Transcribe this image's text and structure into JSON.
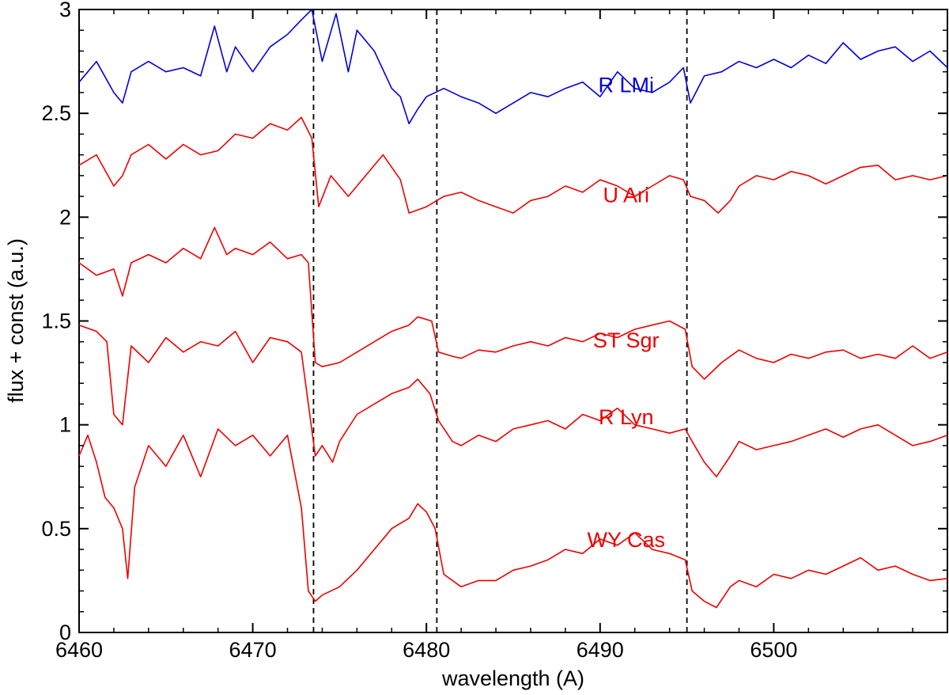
{
  "chart_data": {
    "type": "line",
    "title": "",
    "xlabel": "wavelength (A)",
    "ylabel": "flux + const (a.u.)",
    "xlim": [
      6460,
      6510
    ],
    "ylim": [
      0,
      3
    ],
    "xticks": [
      6460,
      6470,
      6480,
      6490,
      6500
    ],
    "xtick_labels": [
      "6460",
      "6470",
      "6480",
      "6490",
      "6500"
    ],
    "yticks": [
      0,
      0.5,
      1,
      1.5,
      2,
      2.5,
      3
    ],
    "ytick_labels": [
      "0",
      "0.5",
      "1",
      "1.5",
      "2",
      "2.5",
      "3"
    ],
    "reference_lines_x": [
      6473.5,
      6480.6,
      6495.0
    ],
    "series": [
      {
        "name": "R LMi",
        "color": "#0000dd",
        "x": [
          6460,
          6461,
          6462,
          6462.5,
          6463,
          6464,
          6465,
          6466,
          6467,
          6467.8,
          6468.5,
          6469,
          6470,
          6471,
          6472,
          6472.8,
          6473.4,
          6474,
          6474.8,
          6475.5,
          6476,
          6477,
          6478,
          6478.5,
          6479,
          6479.5,
          6480,
          6481,
          6482,
          6483,
          6484,
          6485,
          6486,
          6487,
          6488,
          6489,
          6490,
          6491,
          6492,
          6493,
          6494,
          6494.8,
          6495.2,
          6496,
          6497,
          6498,
          6499,
          6500,
          6501,
          6502,
          6503,
          6504,
          6505,
          6506,
          6507,
          6508,
          6509,
          6510
        ],
        "y": [
          2.65,
          2.75,
          2.6,
          2.55,
          2.7,
          2.75,
          2.7,
          2.72,
          2.68,
          2.92,
          2.7,
          2.82,
          2.7,
          2.82,
          2.88,
          2.95,
          3.0,
          2.75,
          2.98,
          2.7,
          2.9,
          2.8,
          2.62,
          2.58,
          2.45,
          2.52,
          2.58,
          2.62,
          2.58,
          2.55,
          2.5,
          2.55,
          2.6,
          2.58,
          2.62,
          2.65,
          2.58,
          2.7,
          2.62,
          2.6,
          2.65,
          2.72,
          2.55,
          2.68,
          2.7,
          2.75,
          2.72,
          2.76,
          2.72,
          2.78,
          2.74,
          2.84,
          2.76,
          2.8,
          2.82,
          2.75,
          2.8,
          2.72
        ]
      },
      {
        "name": "U Ari",
        "color": "#ee0000",
        "x": [
          6460,
          6461,
          6462,
          6462.5,
          6463,
          6464,
          6465,
          6466,
          6467,
          6468,
          6469,
          6470,
          6471,
          6472,
          6472.8,
          6473.4,
          6473.8,
          6474.5,
          6475.5,
          6476.5,
          6477.5,
          6478.5,
          6479,
          6480,
          6481,
          6482,
          6483,
          6484,
          6485,
          6486,
          6487,
          6488,
          6489,
          6490,
          6491,
          6492,
          6493,
          6494,
          6494.8,
          6495.2,
          6496,
          6496.8,
          6497.5,
          6498,
          6499,
          6500,
          6501,
          6502,
          6503,
          6504,
          6505,
          6506,
          6507,
          6508,
          6509,
          6510
        ],
        "y": [
          2.25,
          2.3,
          2.15,
          2.2,
          2.3,
          2.35,
          2.28,
          2.35,
          2.3,
          2.32,
          2.4,
          2.38,
          2.45,
          2.42,
          2.48,
          2.38,
          2.05,
          2.2,
          2.1,
          2.2,
          2.3,
          2.18,
          2.02,
          2.05,
          2.1,
          2.12,
          2.08,
          2.05,
          2.02,
          2.08,
          2.1,
          2.15,
          2.12,
          2.18,
          2.15,
          2.1,
          2.15,
          2.2,
          2.18,
          2.1,
          2.08,
          2.02,
          2.08,
          2.15,
          2.2,
          2.18,
          2.22,
          2.2,
          2.16,
          2.2,
          2.24,
          2.25,
          2.18,
          2.2,
          2.18,
          2.2
        ]
      },
      {
        "name": "ST Sgr",
        "color": "#ee0000",
        "x": [
          6460,
          6461,
          6462,
          6462.5,
          6463,
          6464,
          6465,
          6466,
          6467,
          6467.8,
          6468.5,
          6469,
          6470,
          6471,
          6472,
          6472.8,
          6473.2,
          6473.6,
          6474,
          6475,
          6476,
          6477,
          6478,
          6479,
          6479.5,
          6480.3,
          6480.7,
          6481.5,
          6482,
          6483,
          6484,
          6485,
          6486,
          6487,
          6488,
          6489,
          6490,
          6491,
          6492,
          6493,
          6494,
          6494.9,
          6495.3,
          6496,
          6497,
          6498,
          6499,
          6500,
          6501,
          6502,
          6503,
          6504,
          6505,
          6506,
          6507,
          6508,
          6509,
          6510
        ],
        "y": [
          1.78,
          1.72,
          1.75,
          1.62,
          1.78,
          1.82,
          1.78,
          1.85,
          1.8,
          1.95,
          1.82,
          1.85,
          1.82,
          1.88,
          1.8,
          1.82,
          1.78,
          1.3,
          1.28,
          1.3,
          1.35,
          1.4,
          1.45,
          1.48,
          1.52,
          1.5,
          1.35,
          1.33,
          1.32,
          1.36,
          1.35,
          1.38,
          1.4,
          1.38,
          1.42,
          1.4,
          1.44,
          1.42,
          1.46,
          1.48,
          1.5,
          1.46,
          1.28,
          1.22,
          1.3,
          1.36,
          1.32,
          1.3,
          1.34,
          1.32,
          1.35,
          1.36,
          1.32,
          1.34,
          1.32,
          1.38,
          1.32,
          1.35
        ]
      },
      {
        "name": "R Lyn",
        "color": "#ee0000",
        "x": [
          6460,
          6461,
          6461.6,
          6462,
          6462.5,
          6463,
          6464,
          6465,
          6466,
          6467,
          6468,
          6469,
          6470,
          6471,
          6472,
          6472.8,
          6473.2,
          6473.6,
          6474,
          6474.6,
          6475,
          6476,
          6477,
          6478,
          6479,
          6479.5,
          6480.2,
          6480.7,
          6481.5,
          6482,
          6483,
          6484,
          6485,
          6486,
          6487,
          6488,
          6489,
          6490,
          6491,
          6492,
          6493,
          6494,
          6494.9,
          6495.3,
          6496,
          6496.7,
          6497.5,
          6498,
          6499,
          6500,
          6501,
          6502,
          6503,
          6504,
          6505,
          6506,
          6507,
          6508,
          6509,
          6510
        ],
        "y": [
          1.48,
          1.45,
          1.4,
          1.05,
          1.0,
          1.38,
          1.3,
          1.42,
          1.35,
          1.4,
          1.38,
          1.45,
          1.3,
          1.42,
          1.4,
          1.35,
          1.1,
          0.85,
          0.9,
          0.82,
          0.92,
          1.05,
          1.1,
          1.15,
          1.18,
          1.22,
          1.15,
          1.02,
          0.92,
          0.9,
          0.95,
          0.92,
          0.98,
          1.0,
          1.02,
          0.98,
          1.05,
          1.02,
          1.08,
          1.0,
          0.98,
          0.96,
          0.98,
          0.92,
          0.82,
          0.75,
          0.85,
          0.92,
          0.88,
          0.9,
          0.92,
          0.95,
          0.98,
          0.94,
          0.98,
          1.0,
          0.95,
          0.9,
          0.92,
          0.95
        ]
      },
      {
        "name": "WY Cas",
        "color": "#ee0000",
        "x": [
          6460,
          6460.5,
          6461,
          6461.5,
          6462,
          6462.5,
          6462.8,
          6463.2,
          6464,
          6465,
          6466,
          6467,
          6468,
          6469,
          6470,
          6471,
          6472,
          6472.8,
          6473.2,
          6473.6,
          6474,
          6475,
          6476,
          6477,
          6478,
          6479,
          6479.5,
          6480,
          6480.5,
          6481,
          6482,
          6483,
          6484,
          6485,
          6486,
          6487,
          6488,
          6489,
          6490,
          6491,
          6492,
          6493,
          6494,
          6494.9,
          6495.3,
          6496,
          6496.7,
          6497.5,
          6498,
          6499,
          6500,
          6501,
          6502,
          6503,
          6504,
          6505,
          6506,
          6507,
          6508,
          6509,
          6510
        ],
        "y": [
          0.85,
          0.95,
          0.82,
          0.65,
          0.6,
          0.5,
          0.26,
          0.7,
          0.9,
          0.8,
          0.95,
          0.75,
          0.98,
          0.9,
          0.95,
          0.85,
          0.95,
          0.6,
          0.2,
          0.15,
          0.18,
          0.22,
          0.3,
          0.4,
          0.5,
          0.55,
          0.62,
          0.58,
          0.5,
          0.28,
          0.22,
          0.25,
          0.25,
          0.3,
          0.32,
          0.35,
          0.4,
          0.38,
          0.45,
          0.42,
          0.48,
          0.4,
          0.38,
          0.35,
          0.2,
          0.15,
          0.12,
          0.22,
          0.25,
          0.22,
          0.28,
          0.26,
          0.3,
          0.28,
          0.32,
          0.36,
          0.3,
          0.32,
          0.28,
          0.25,
          0.26
        ]
      }
    ],
    "annotations": [
      {
        "text": "R LMi",
        "x": 6491.5,
        "y": 2.64,
        "color": "#0000dd"
      },
      {
        "text": "U Ari",
        "x": 6491.5,
        "y": 2.11,
        "color": "#ee0000"
      },
      {
        "text": "ST Sgr",
        "x": 6491.5,
        "y": 1.41,
        "color": "#ee0000"
      },
      {
        "text": "R Lyn",
        "x": 6491.5,
        "y": 1.04,
        "color": "#ee0000"
      },
      {
        "text": "WY Cas",
        "x": 6491.5,
        "y": 0.45,
        "color": "#ee0000"
      }
    ]
  }
}
